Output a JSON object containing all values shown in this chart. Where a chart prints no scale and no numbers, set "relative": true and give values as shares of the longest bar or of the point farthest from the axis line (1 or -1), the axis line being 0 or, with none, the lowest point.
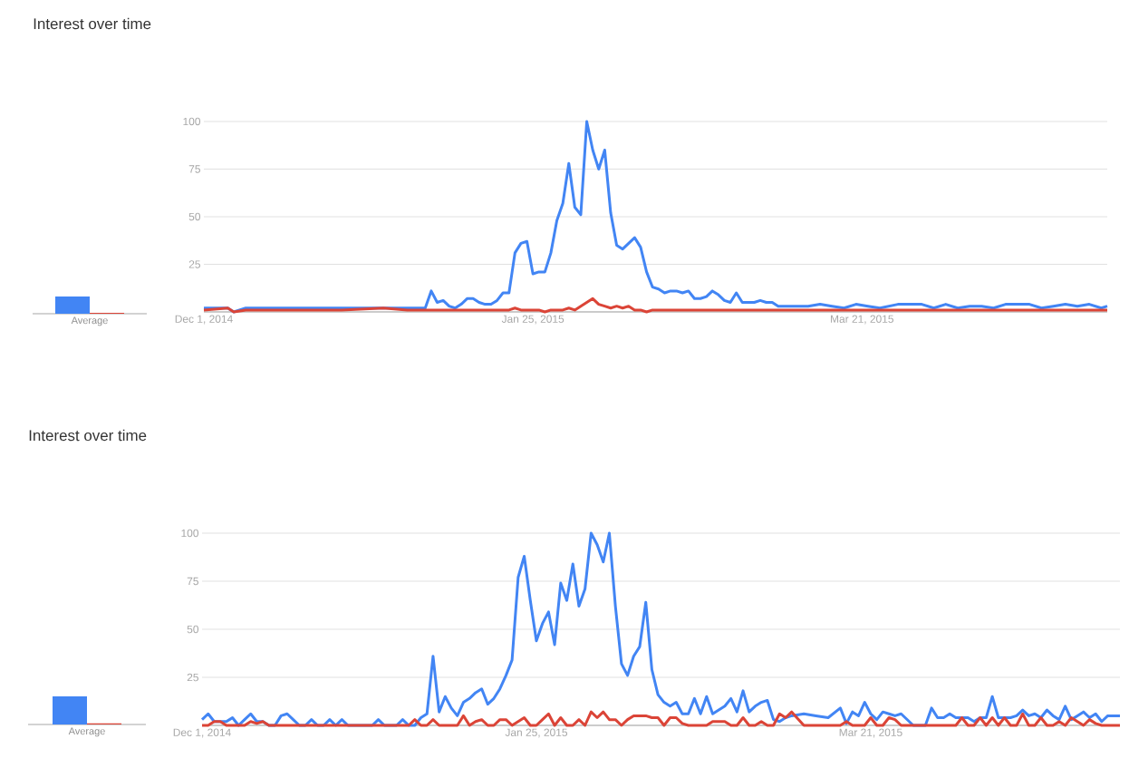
{
  "chart_data": [
    {
      "type": "bar",
      "title": "Interest over time",
      "categories": [
        "Average"
      ],
      "relative": true,
      "series": [
        {
          "color": "#4285f4",
          "values": [
            1
          ]
        },
        {
          "color": "#db4437",
          "values": [
            0.05
          ]
        }
      ]
    },
    {
      "type": "line",
      "xlim": [
        "2014-12-01",
        "2015-05-01"
      ],
      "ylim": [
        0,
        100
      ],
      "yticks": [
        25,
        50,
        75,
        100
      ],
      "grid": "y",
      "xticks": [
        {
          "value": "2014-12-01",
          "label": "Dec 1, 2014"
        },
        {
          "value": "2015-01-25",
          "label": "Jan 25, 2015"
        },
        {
          "value": "2015-03-21",
          "label": "Mar 21, 2015"
        }
      ],
      "x": [
        "2014-12-01",
        "2014-12-05",
        "2014-12-06",
        "2014-12-08",
        "2014-12-16",
        "2014-12-24",
        "2014-12-31",
        "2015-01-04",
        "2015-01-07",
        "2015-01-08",
        "2015-01-09",
        "2015-01-10",
        "2015-01-11",
        "2015-01-12",
        "2015-01-13",
        "2015-01-14",
        "2015-01-15",
        "2015-01-16",
        "2015-01-17",
        "2015-01-18",
        "2015-01-19",
        "2015-01-20",
        "2015-01-21",
        "2015-01-22",
        "2015-01-23",
        "2015-01-24",
        "2015-01-25",
        "2015-01-26",
        "2015-01-27",
        "2015-01-28",
        "2015-01-29",
        "2015-01-30",
        "2015-01-31",
        "2015-02-01",
        "2015-02-02",
        "2015-02-03",
        "2015-02-04",
        "2015-02-05",
        "2015-02-06",
        "2015-02-07",
        "2015-02-08",
        "2015-02-09",
        "2015-02-10",
        "2015-02-11",
        "2015-02-12",
        "2015-02-13",
        "2015-02-14",
        "2015-02-15",
        "2015-02-16",
        "2015-02-17",
        "2015-02-18",
        "2015-02-19",
        "2015-02-20",
        "2015-02-21",
        "2015-02-22",
        "2015-02-23",
        "2015-02-24",
        "2015-02-25",
        "2015-02-26",
        "2015-02-27",
        "2015-02-28",
        "2015-03-01",
        "2015-03-02",
        "2015-03-03",
        "2015-03-04",
        "2015-03-05",
        "2015-03-06",
        "2015-03-07",
        "2015-03-09",
        "2015-03-12",
        "2015-03-14",
        "2015-03-16",
        "2015-03-18",
        "2015-03-20",
        "2015-03-22",
        "2015-03-24",
        "2015-03-27",
        "2015-03-29",
        "2015-03-31",
        "2015-04-02",
        "2015-04-04",
        "2015-04-06",
        "2015-04-08",
        "2015-04-10",
        "2015-04-12",
        "2015-04-14",
        "2015-04-16",
        "2015-04-18",
        "2015-04-20",
        "2015-04-22",
        "2015-04-24",
        "2015-04-26",
        "2015-04-28",
        "2015-04-30",
        "2015-05-01"
      ],
      "series": [
        {
          "color": "#4285f4",
          "values": [
            2,
            2,
            0,
            2,
            2,
            2,
            2,
            2,
            2,
            11,
            5,
            6,
            3,
            2,
            4,
            7,
            7,
            5,
            4,
            4,
            6,
            10,
            10,
            31,
            36,
            37,
            20,
            21,
            21,
            31,
            48,
            57,
            78,
            55,
            51,
            100,
            85,
            75,
            85,
            52,
            35,
            33,
            36,
            39,
            34,
            21,
            13,
            12,
            10,
            11,
            11,
            10,
            11,
            7,
            7,
            8,
            11,
            9,
            6,
            5,
            10,
            5,
            5,
            5,
            6,
            5,
            5,
            3,
            3,
            3,
            4,
            3,
            2,
            4,
            3,
            2,
            4,
            4,
            4,
            2,
            4,
            2,
            3,
            3,
            2,
            4,
            4,
            4,
            2,
            3,
            4,
            3,
            4,
            2,
            3
          ]
        },
        {
          "color": "#db4437",
          "values": [
            1,
            2,
            0,
            1,
            1,
            1,
            2,
            1,
            1,
            1,
            1,
            1,
            1,
            1,
            1,
            1,
            1,
            1,
            1,
            1,
            1,
            1,
            1,
            2,
            1,
            1,
            1,
            1,
            0,
            1,
            1,
            1,
            2,
            1,
            3,
            5,
            7,
            4,
            3,
            2,
            3,
            2,
            3,
            1,
            1,
            0,
            1,
            1,
            1,
            1,
            1,
            1,
            1,
            1,
            1,
            1,
            1,
            1,
            1,
            1,
            1,
            1,
            1,
            1,
            1,
            1,
            1,
            1,
            1,
            1,
            1,
            1,
            1,
            1,
            1,
            1,
            1,
            1,
            1,
            1,
            1,
            1,
            1,
            1,
            1,
            1,
            1,
            1,
            1,
            1,
            1,
            1,
            1,
            1,
            1
          ]
        }
      ]
    },
    {
      "type": "bar",
      "title": "Interest over time",
      "categories": [
        "Average"
      ],
      "relative": true,
      "series": [
        {
          "color": "#4285f4",
          "values": [
            1
          ]
        },
        {
          "color": "#db4437",
          "values": [
            0.04
          ]
        }
      ]
    },
    {
      "type": "line",
      "xlim": [
        "2014-12-01",
        "2015-05-01"
      ],
      "ylim": [
        0,
        100
      ],
      "yticks": [
        25,
        50,
        75,
        100
      ],
      "grid": "y",
      "xticks": [
        {
          "value": "2014-12-01",
          "label": "Dec 1, 2014"
        },
        {
          "value": "2015-01-25",
          "label": "Jan 25, 2015"
        },
        {
          "value": "2015-03-21",
          "label": "Mar 21, 2015"
        }
      ],
      "x": [
        "2014-12-01",
        "2014-12-02",
        "2014-12-03",
        "2014-12-04",
        "2014-12-05",
        "2014-12-06",
        "2014-12-07",
        "2014-12-08",
        "2014-12-09",
        "2014-12-10",
        "2014-12-11",
        "2014-12-12",
        "2014-12-13",
        "2014-12-14",
        "2014-12-15",
        "2014-12-16",
        "2014-12-17",
        "2014-12-18",
        "2014-12-19",
        "2014-12-20",
        "2014-12-21",
        "2014-12-22",
        "2014-12-23",
        "2014-12-24",
        "2014-12-25",
        "2014-12-26",
        "2014-12-27",
        "2014-12-28",
        "2014-12-29",
        "2014-12-30",
        "2014-12-31",
        "2015-01-01",
        "2015-01-02",
        "2015-01-03",
        "2015-01-04",
        "2015-01-05",
        "2015-01-06",
        "2015-01-07",
        "2015-01-08",
        "2015-01-09",
        "2015-01-10",
        "2015-01-11",
        "2015-01-12",
        "2015-01-13",
        "2015-01-14",
        "2015-01-15",
        "2015-01-16",
        "2015-01-17",
        "2015-01-18",
        "2015-01-19",
        "2015-01-20",
        "2015-01-21",
        "2015-01-22",
        "2015-01-23",
        "2015-01-24",
        "2015-01-25",
        "2015-01-26",
        "2015-01-27",
        "2015-01-28",
        "2015-01-29",
        "2015-01-30",
        "2015-01-31",
        "2015-02-01",
        "2015-02-02",
        "2015-02-03",
        "2015-02-04",
        "2015-02-05",
        "2015-02-06",
        "2015-02-07",
        "2015-02-08",
        "2015-02-09",
        "2015-02-10",
        "2015-02-11",
        "2015-02-12",
        "2015-02-13",
        "2015-02-14",
        "2015-02-15",
        "2015-02-16",
        "2015-02-17",
        "2015-02-18",
        "2015-02-19",
        "2015-02-20",
        "2015-02-21",
        "2015-02-22",
        "2015-02-23",
        "2015-02-24",
        "2015-02-25",
        "2015-02-26",
        "2015-02-27",
        "2015-02-28",
        "2015-03-01",
        "2015-03-02",
        "2015-03-03",
        "2015-03-04",
        "2015-03-05",
        "2015-03-06",
        "2015-03-07",
        "2015-03-08",
        "2015-03-10",
        "2015-03-12",
        "2015-03-14",
        "2015-03-16",
        "2015-03-17",
        "2015-03-18",
        "2015-03-19",
        "2015-03-20",
        "2015-03-21",
        "2015-03-22",
        "2015-03-23",
        "2015-03-24",
        "2015-03-25",
        "2015-03-26",
        "2015-03-27",
        "2015-03-28",
        "2015-03-29",
        "2015-03-30",
        "2015-03-31",
        "2015-04-01",
        "2015-04-02",
        "2015-04-03",
        "2015-04-04",
        "2015-04-05",
        "2015-04-06",
        "2015-04-07",
        "2015-04-08",
        "2015-04-09",
        "2015-04-10",
        "2015-04-11",
        "2015-04-12",
        "2015-04-13",
        "2015-04-14",
        "2015-04-15",
        "2015-04-16",
        "2015-04-17",
        "2015-04-18",
        "2015-04-19",
        "2015-04-20",
        "2015-04-21",
        "2015-04-22",
        "2015-04-23",
        "2015-04-24",
        "2015-04-25",
        "2015-04-26",
        "2015-04-27",
        "2015-04-28",
        "2015-04-29",
        "2015-05-01"
      ],
      "series": [
        {
          "color": "#4285f4",
          "values": [
            3,
            6,
            2,
            2,
            2,
            4,
            0,
            3,
            6,
            2,
            2,
            0,
            0,
            5,
            6,
            3,
            0,
            0,
            3,
            0,
            0,
            3,
            0,
            3,
            0,
            0,
            0,
            0,
            0,
            3,
            0,
            0,
            0,
            3,
            0,
            0,
            4,
            6,
            36,
            7,
            15,
            9,
            5,
            12,
            14,
            17,
            19,
            11,
            14,
            19,
            26,
            34,
            77,
            88,
            65,
            44,
            53,
            59,
            42,
            74,
            65,
            84,
            62,
            71,
            100,
            94,
            85,
            100,
            62,
            32,
            26,
            36,
            41,
            64,
            29,
            16,
            12,
            10,
            12,
            6,
            6,
            14,
            6,
            15,
            6,
            8,
            10,
            14,
            7,
            18,
            7,
            10,
            12,
            13,
            3,
            2,
            4,
            5,
            6,
            5,
            4,
            9,
            1,
            7,
            5,
            12,
            6,
            3,
            7,
            6,
            5,
            6,
            3,
            0,
            0,
            0,
            9,
            4,
            4,
            6,
            4,
            4,
            4,
            2,
            4,
            4,
            15,
            4,
            4,
            4,
            5,
            8,
            5,
            6,
            4,
            8,
            5,
            3,
            10,
            3,
            5,
            7,
            4,
            6,
            2,
            5,
            5
          ]
        },
        {
          "color": "#db4437",
          "values": [
            0,
            0,
            2,
            2,
            0,
            0,
            0,
            0,
            2,
            1,
            2,
            0,
            0,
            0,
            0,
            0,
            0,
            0,
            0,
            0,
            0,
            0,
            0,
            0,
            0,
            0,
            0,
            0,
            0,
            0,
            0,
            0,
            0,
            0,
            0,
            3,
            0,
            0,
            3,
            0,
            0,
            0,
            0,
            5,
            0,
            2,
            3,
            0,
            0,
            3,
            3,
            0,
            2,
            4,
            0,
            0,
            3,
            6,
            0,
            4,
            0,
            0,
            3,
            0,
            7,
            4,
            7,
            3,
            3,
            0,
            3,
            5,
            5,
            5,
            4,
            4,
            0,
            4,
            4,
            1,
            0,
            0,
            0,
            0,
            2,
            2,
            2,
            0,
            0,
            4,
            0,
            0,
            2,
            0,
            0,
            6,
            4,
            7,
            0,
            0,
            0,
            0,
            2,
            0,
            0,
            0,
            4,
            0,
            0,
            4,
            3,
            0,
            0,
            0,
            0,
            0,
            0,
            0,
            0,
            0,
            0,
            4,
            0,
            0,
            4,
            0,
            4,
            0,
            4,
            0,
            0,
            6,
            0,
            0,
            4,
            0,
            0,
            2,
            0,
            4,
            2,
            0,
            3,
            1,
            0,
            0,
            0
          ]
        }
      ]
    }
  ]
}
